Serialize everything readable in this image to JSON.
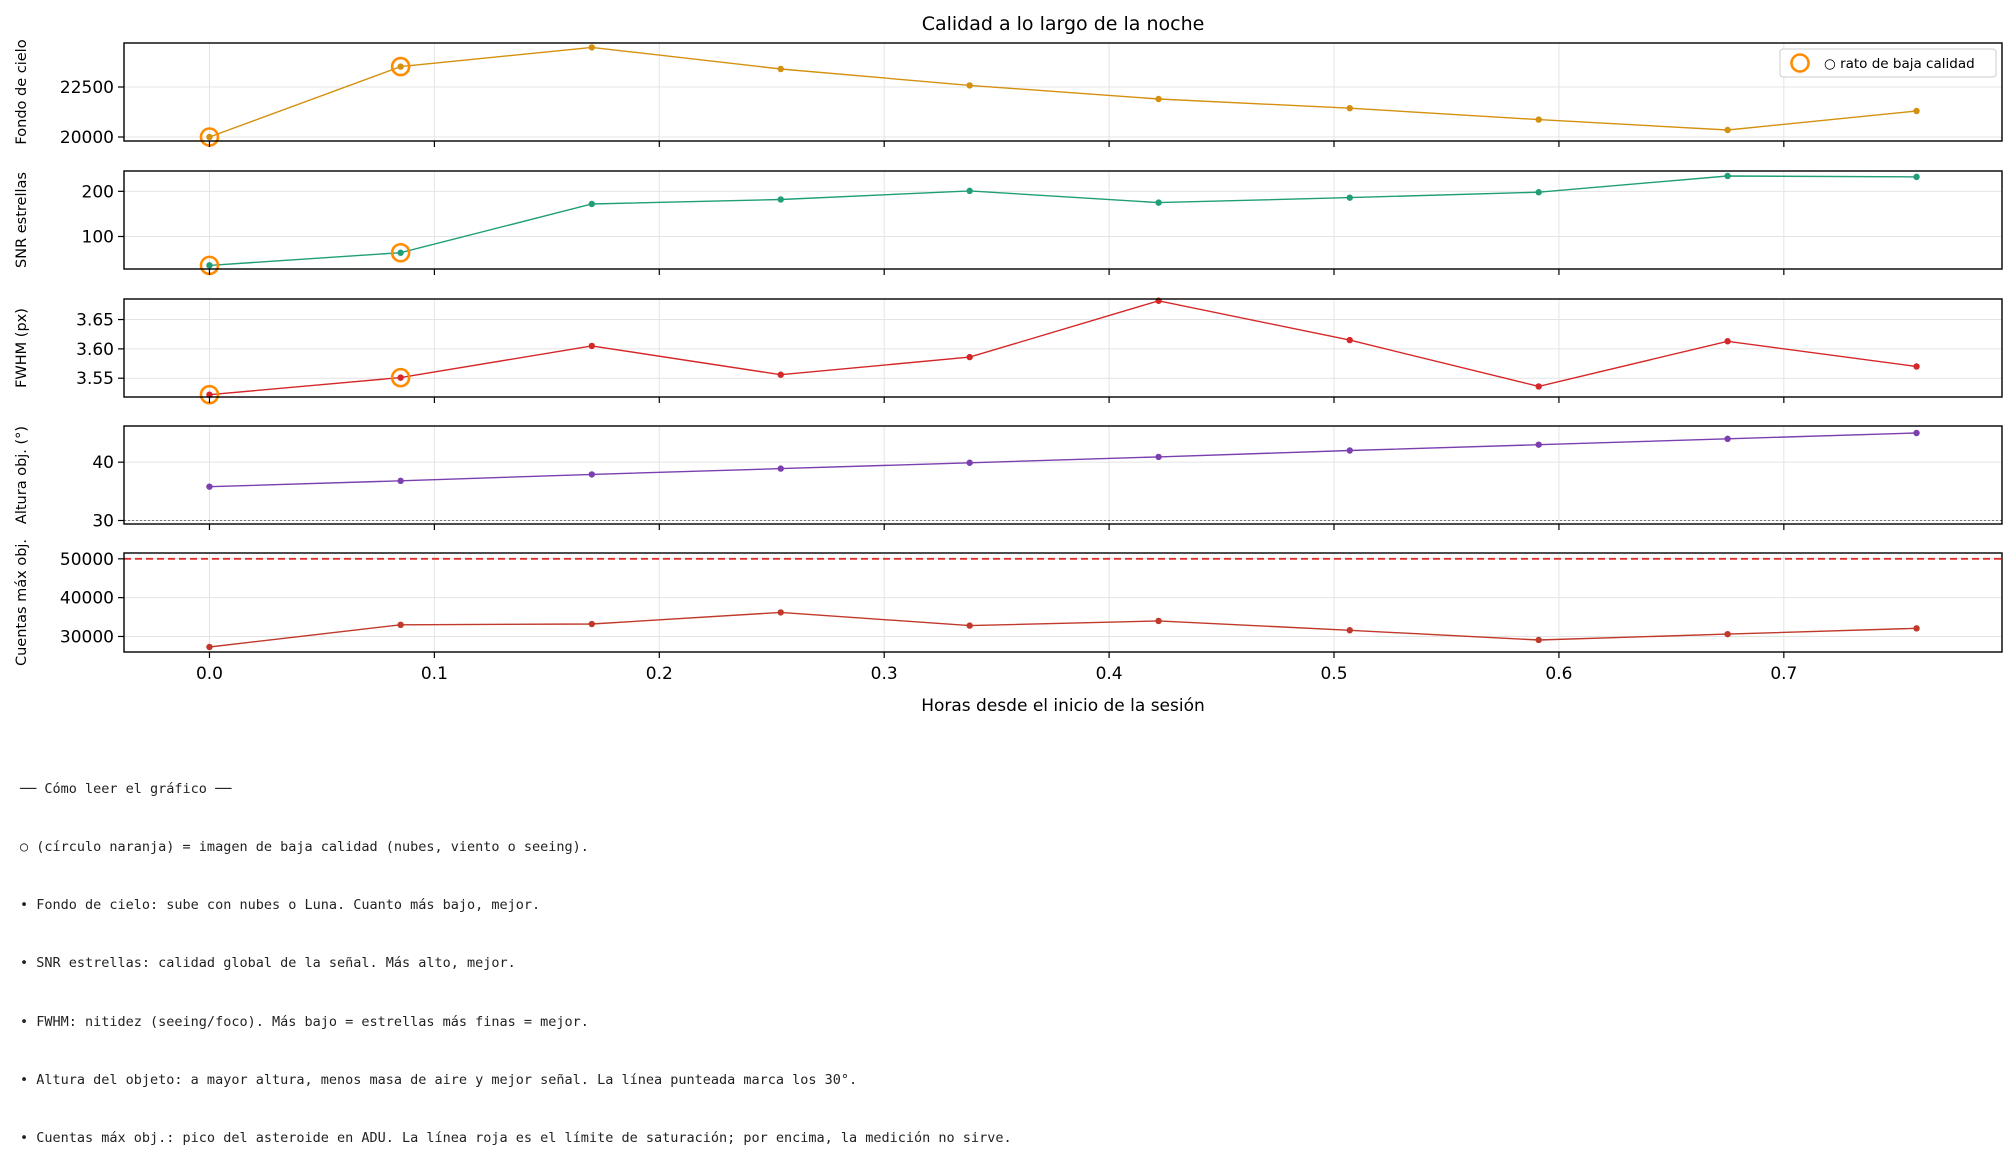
{
  "title": "Calidad a lo largo de la noche",
  "xlabel": "Horas desde el inicio de la sesión",
  "legend_label": "○ rato de baja calidad",
  "colors": {
    "sky": "#d4900e",
    "snr": "#1f9e78",
    "fwhm": "#d62728",
    "alt": "#7b3fb0",
    "counts": "#c0392b",
    "marker_ring": "#ff8c00",
    "saturation": "#e03030"
  },
  "notes": [
    "── Cómo leer el gráfico ──",
    "○ (círculo naranja) = imagen de baja calidad (nubes, viento o seeing).",
    "• Fondo de cielo: sube con nubes o Luna. Cuanto más bajo, mejor.",
    "• SNR estrellas: calidad global de la señal. Más alto, mejor.",
    "• FWHM: nitidez (seeing/foco). Más bajo = estrellas más finas = mejor.",
    "• Altura del objeto: a mayor altura, menos masa de aire y mejor señal. La línea punteada marca los 30°.",
    "• Cuentas máx obj.: pico del asteroide en ADU. La línea roja es el límite de saturación; por encima, la medición no sirve."
  ],
  "chart_data": {
    "type": "line",
    "title": "Calidad a lo largo de la noche",
    "xlabel": "Horas desde el inicio de la sesión",
    "x": [
      0.0,
      0.085,
      0.17,
      0.254,
      0.338,
      0.422,
      0.507,
      0.591,
      0.675,
      0.759
    ],
    "xlim": [
      -0.038,
      0.797
    ],
    "xticks": [
      0.0,
      0.1,
      0.2,
      0.3,
      0.4,
      0.5,
      0.6,
      0.7
    ],
    "xtick_labels": [
      "0.0",
      "0.1",
      "0.2",
      "0.3",
      "0.4",
      "0.5",
      "0.6",
      "0.7"
    ],
    "low_quality_indices": [
      0,
      1
    ],
    "legend": {
      "label": "○ rato de baja calidad",
      "position": "top-right"
    },
    "grid": true,
    "panels": [
      {
        "key": "sky",
        "ylabel": "Fondo de cielo",
        "ylim": [
          19800,
          24700
        ],
        "yticks": [
          20000,
          22500
        ],
        "ytick_labels": [
          "20000",
          "22500"
        ],
        "values": [
          20000,
          23520,
          24480,
          23400,
          22580,
          21900,
          21440,
          20870,
          20350,
          21300
        ],
        "low_quality_marks": true
      },
      {
        "key": "snr",
        "ylabel": "SNR estrellas",
        "ylim": [
          28,
          245
        ],
        "yticks": [
          100,
          200
        ],
        "ytick_labels": [
          "100",
          "200"
        ],
        "values": [
          36,
          64,
          172,
          182,
          201,
          175,
          186,
          198,
          234,
          232
        ],
        "low_quality_marks": true
      },
      {
        "key": "fwhm",
        "ylabel": "FWHM (px)",
        "ylim": [
          3.518,
          3.685
        ],
        "yticks": [
          3.55,
          3.6,
          3.65
        ],
        "ytick_labels": [
          "3.55",
          "3.60",
          "3.65"
        ],
        "values": [
          3.522,
          3.551,
          3.605,
          3.556,
          3.586,
          3.682,
          3.615,
          3.536,
          3.613,
          3.57
        ],
        "low_quality_marks": true
      },
      {
        "key": "alt",
        "ylabel": "Altura obj. (°)",
        "ylim": [
          29.4,
          46.2
        ],
        "yticks": [
          30,
          40
        ],
        "ytick_labels": [
          "30",
          "40"
        ],
        "values": [
          35.8,
          36.8,
          37.9,
          38.9,
          39.9,
          40.9,
          42.0,
          43.0,
          44.0,
          45.0
        ],
        "reference_line": {
          "y": 30,
          "style": "dotted"
        },
        "low_quality_marks": false
      },
      {
        "key": "counts",
        "ylabel": "Cuentas máx obj.",
        "ylim": [
          26000,
          51500
        ],
        "yticks": [
          30000,
          40000,
          50000
        ],
        "ytick_labels": [
          "30000",
          "40000",
          "50000"
        ],
        "values": [
          27300,
          33000,
          33200,
          36200,
          32800,
          34000,
          31600,
          29100,
          30600,
          32100
        ],
        "reference_line": {
          "y": 50000,
          "style": "dashed"
        },
        "low_quality_marks": false
      }
    ]
  }
}
